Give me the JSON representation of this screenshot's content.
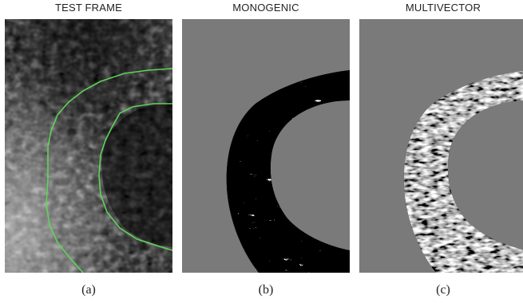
{
  "panels": [
    {
      "title": "TEST FRAME",
      "caption": "(a)",
      "kind": "ultrasound-frame"
    },
    {
      "title": "MONOGENIC",
      "caption": "(b)",
      "kind": "monogenic-texture"
    },
    {
      "title": "MULTIVECTOR",
      "caption": "(c)",
      "kind": "multivector-texture"
    }
  ],
  "colors": {
    "background_gray": "#7a7a7a",
    "contour_green": "#5fd35a",
    "frame_dark": "#151515"
  }
}
